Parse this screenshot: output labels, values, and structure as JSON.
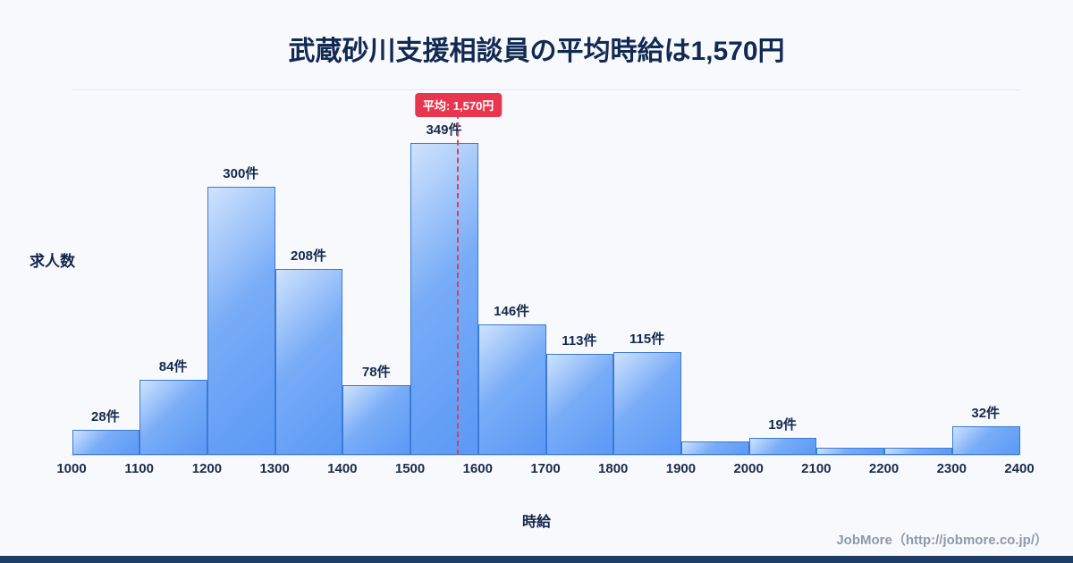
{
  "page": {
    "title": "武蔵砂川支援相談員の平均時給は1,570円",
    "footer": "JobMore（http://jobmore.co.jp/）"
  },
  "chart_data": {
    "type": "bar",
    "subtype": "histogram",
    "title": "武蔵砂川支援相談員の平均時給は1,570円",
    "xlabel": "時給",
    "ylabel": "求人数",
    "x_ticks": [
      1000,
      1100,
      1200,
      1300,
      1400,
      1500,
      1600,
      1700,
      1800,
      1900,
      2000,
      2100,
      2200,
      2300,
      2400
    ],
    "bin_width": 100,
    "values": [
      28,
      84,
      300,
      208,
      78,
      349,
      146,
      113,
      115,
      15,
      19,
      8,
      8,
      32
    ],
    "labels": [
      "28件",
      "84件",
      "300件",
      "208件",
      "78件",
      "349件",
      "146件",
      "113件",
      "115件",
      "",
      "19件",
      "",
      "",
      "32件"
    ],
    "average": {
      "value": 1570,
      "label": "平均: 1,570円"
    },
    "ylim": [
      0,
      410
    ],
    "grid": false,
    "legend": "none",
    "colors": {
      "bar_fill_light": "#cfe3fd",
      "bar_fill_dark": "#5b99f6",
      "bar_border": "#3b7ad6",
      "average_line": "#e8364f",
      "title_text": "#122a52",
      "background": "#f7f9fd",
      "bottom_strip": "#1e3d66"
    }
  }
}
